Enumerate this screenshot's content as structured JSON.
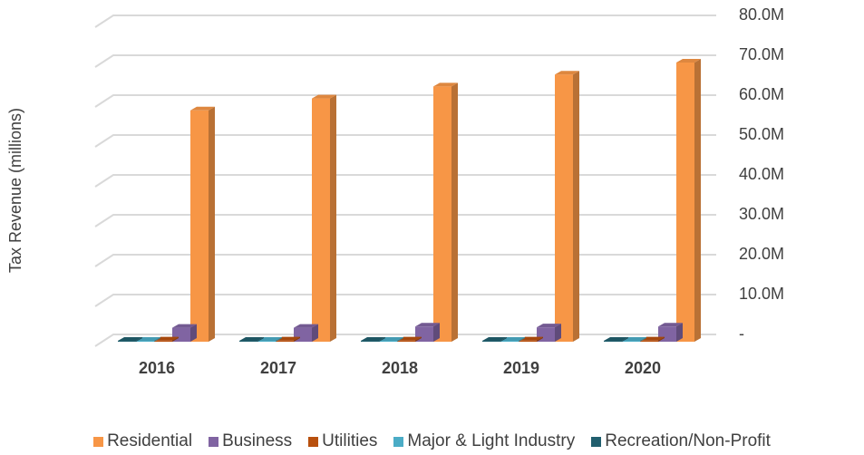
{
  "chart_data": {
    "type": "bar3d",
    "y_axis_label": "Tax Revenue (millions)",
    "categories": [
      "2016",
      "2017",
      "2018",
      "2019",
      "2020"
    ],
    "series": [
      {
        "name": "Residential",
        "color": "#f79646",
        "values": [
          58,
          61,
          64,
          67,
          70
        ]
      },
      {
        "name": "Business",
        "color": "#8064a2",
        "values": [
          3.5,
          3.5,
          3.8,
          3.6,
          3.8
        ]
      },
      {
        "name": "Utilities",
        "color": "#b8500e",
        "values": [
          0.3,
          0.3,
          0.3,
          0.3,
          0.3
        ]
      },
      {
        "name": "Major & Light Industry",
        "color": "#4bacc6",
        "values": [
          0.1,
          0.1,
          0.1,
          0.1,
          0.1
        ]
      },
      {
        "name": "Recreation/Non-Profit",
        "color": "#215f6e",
        "values": [
          0.1,
          0.1,
          0.1,
          0.1,
          0.1
        ]
      }
    ],
    "ylim": [
      0,
      80
    ],
    "yticks": [
      {
        "value": 0,
        "label": "-"
      },
      {
        "value": 10,
        "label": "10.0M"
      },
      {
        "value": 20,
        "label": "20.0M"
      },
      {
        "value": 30,
        "label": "30.0M"
      },
      {
        "value": 40,
        "label": "40.0M"
      },
      {
        "value": 50,
        "label": "50.0M"
      },
      {
        "value": 60,
        "label": "60.0M"
      },
      {
        "value": 70,
        "label": "70.0M"
      },
      {
        "value": 80,
        "label": "80.0M"
      }
    ],
    "grid": true
  }
}
